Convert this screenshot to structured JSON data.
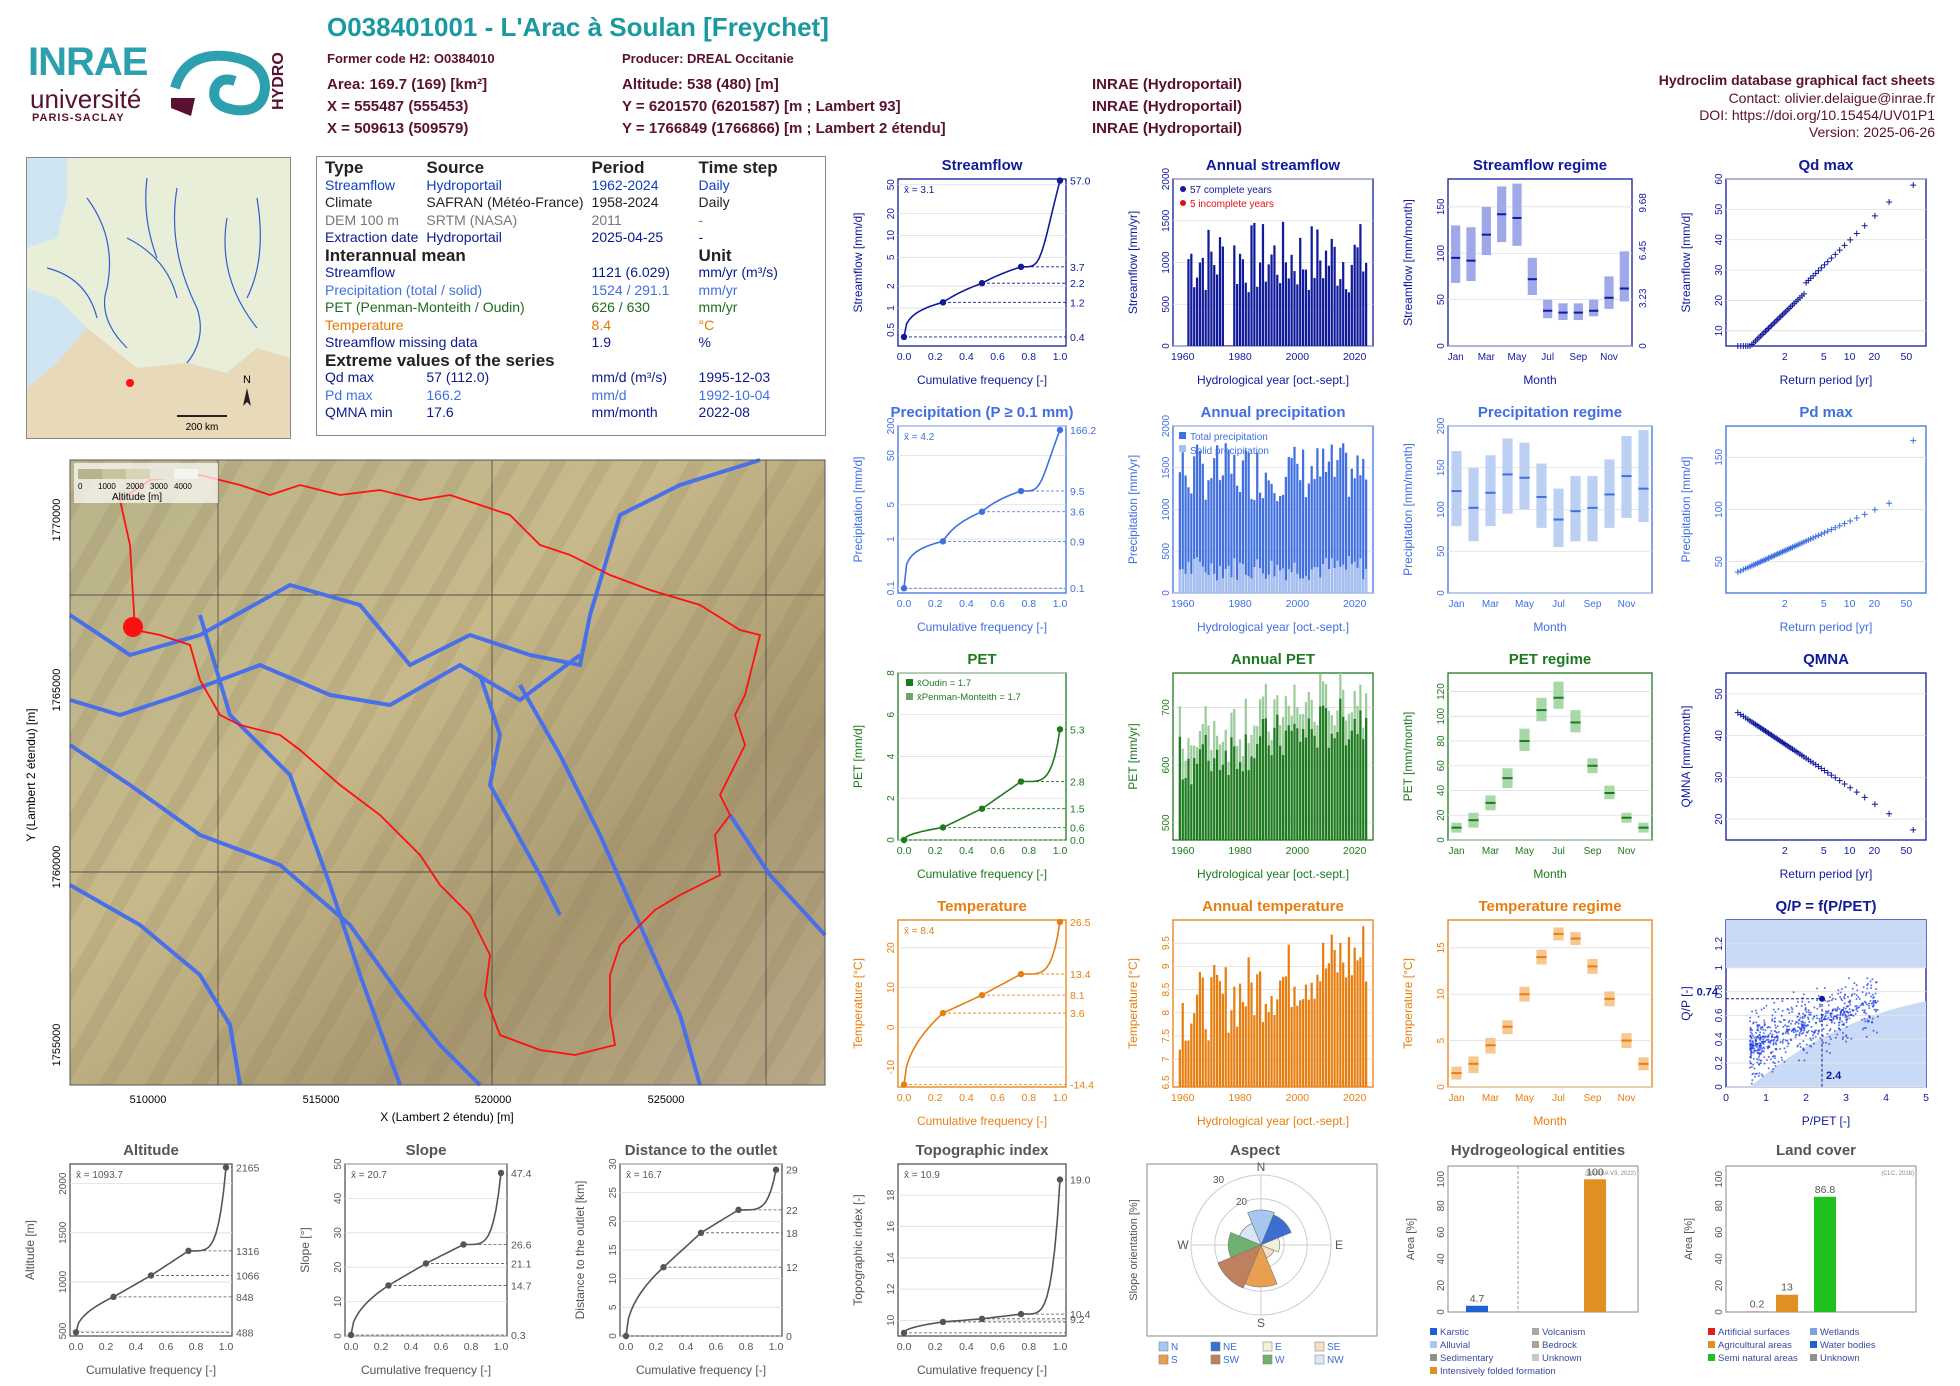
{
  "header": {
    "code_title": "O038401001 - L'Arac à Soulan [Freychet]",
    "former_code": "Former code H2: O0384010",
    "producer": "Producer: DREAL Occitanie",
    "area": "Area: 169.7 (169) [km²]",
    "altitude": "Altitude: 538 (480) [m]",
    "x93": "X = 555487 (555453)",
    "y93": "Y = 6201570 (6201587) [m ; Lambert 93]",
    "x2e": "X = 509613 (509579)",
    "y2e": "Y = 1766849 (1766866) [m ; Lambert 2 étendu]",
    "src1": "INRAE (Hydroportail)",
    "src2": "INRAE (Hydroportail)",
    "src3": "INRAE (Hydroportail)",
    "db_title": "Hydroclim database graphical fact sheets",
    "contact": "Contact: olivier.delaigue@inrae.fr",
    "doi": "DOI: https://doi.org/10.15454/UV01P1",
    "version": "Version: 2025-06-26",
    "logo_inrae": "INRAE",
    "logo_univ": "université",
    "logo_ps": "PARIS-SACLAY",
    "logo_hydro": "HYDRO"
  },
  "info_table": {
    "headers": [
      "Type",
      "Source",
      "Period",
      "Time step"
    ],
    "rows": [
      [
        "Streamflow",
        "Hydroportail",
        "1962-2024",
        "Daily"
      ],
      [
        "Climate",
        "SAFRAN (Météo-France)",
        "1958-2024",
        "Daily"
      ],
      [
        "DEM 100 m",
        "SRTM (NASA)",
        "2011",
        "-"
      ],
      [
        "Extraction date",
        "Hydroportail",
        "2025-04-25",
        "-"
      ]
    ],
    "interannual_title": "Interannual mean",
    "unit_title": "Unit",
    "interannual": [
      [
        "Streamflow",
        "1121 (6.029)",
        "mm/yr (m³/s)"
      ],
      [
        "Precipitation (total / solid)",
        "1524 / 291.1",
        "mm/yr"
      ],
      [
        "PET (Penman-Monteith / Oudin)",
        "626 / 630",
        "mm/yr"
      ],
      [
        "Temperature",
        "8.4",
        "°C"
      ],
      [
        "Streamflow missing data",
        "1.9",
        "%"
      ]
    ],
    "extreme_title": "Extreme values of the series",
    "extremes": [
      [
        "Qd max",
        "57 (112.0)",
        "mm/d (m³/s)",
        "1995-12-03"
      ],
      [
        "Pd max",
        "166.2",
        "mm/d",
        "1992-10-04"
      ],
      [
        "QMNA min",
        "17.6",
        "mm/month",
        "2022-08"
      ]
    ]
  },
  "inset_map": {
    "north": "N",
    "scale": "200 km"
  },
  "dem_map": {
    "legend_title": "Altitude [m]",
    "legend_ticks": [
      "0",
      "1000",
      "2000",
      "3000",
      "4000"
    ],
    "xlabel": "X (Lambert 2 étendu) [m]",
    "ylabel": "Y (Lambert 2 étendu) [m]",
    "xticks": [
      "510000",
      "515000",
      "520000",
      "525000"
    ],
    "yticks": [
      "1770000",
      "1765000",
      "1760000",
      "1755000"
    ]
  },
  "chart_data": [
    {
      "id": "streamflow-cdf",
      "type": "line",
      "title": "Streamflow",
      "ylabel": "Streamflow [mm/d]",
      "xlabel": "Cumulative frequency [-]",
      "mean_label": "x̄ = 3.1",
      "yscale": "log",
      "ylim": [
        0.3,
        60
      ],
      "yticks": [
        "0.5",
        "1",
        "2",
        "5",
        "10",
        "20",
        "50"
      ],
      "right_labels": [
        "57.0",
        "3.7",
        "2.2",
        "1.2",
        "0.4"
      ],
      "x": [
        0,
        0.25,
        0.5,
        0.75,
        1
      ],
      "y": [
        0.4,
        1.2,
        2.2,
        3.7,
        57.0
      ]
    },
    {
      "id": "annual-streamflow",
      "type": "bar",
      "title": "Annual streamflow",
      "ylabel": "Streamflow [mm/yr]",
      "xlabel": "Hydrological year [oct.-sept.]",
      "legend": [
        "57 complete years",
        "5 incomplete years"
      ],
      "ylim": [
        0,
        2000
      ],
      "yticks": [
        "0",
        "500",
        "1000",
        "1500",
        "2000"
      ],
      "xticks": [
        "1960",
        "1980",
        "2000",
        "2020"
      ]
    },
    {
      "id": "streamflow-regime",
      "type": "box",
      "title": "Streamflow regime",
      "ylabel": "Streamflow [mm/month]",
      "right_ylabel": "Streamflow [m³/s]",
      "xlabel": "Month",
      "categories": [
        "Jan",
        "Feb",
        "Mar",
        "Apr",
        "May",
        "Jun",
        "Jul",
        "Aug",
        "Sep",
        "Oct",
        "Nov",
        "Dec"
      ],
      "xtick_labels": [
        "Jan",
        "Mar",
        "May",
        "Jul",
        "Sep",
        "Nov"
      ],
      "median": [
        95,
        92,
        120,
        142,
        138,
        72,
        38,
        36,
        36,
        38,
        52,
        62
      ],
      "low": [
        68,
        70,
        98,
        112,
        108,
        55,
        30,
        28,
        28,
        32,
        40,
        48
      ],
      "high": [
        130,
        128,
        150,
        172,
        175,
        95,
        50,
        46,
        46,
        50,
        75,
        102
      ],
      "ylim": [
        0,
        180
      ],
      "yticks": [
        "0",
        "50",
        "100",
        "150"
      ],
      "right_ticks": [
        "0",
        "3.23",
        "6.45",
        "9.68"
      ]
    },
    {
      "id": "qd-max",
      "type": "scatter",
      "title": "Qd max",
      "ylabel": "Streamflow [mm/d]",
      "xlabel": "Return period [yr]",
      "ylim": [
        5,
        60
      ],
      "yticks": [
        "10",
        "20",
        "30",
        "40",
        "50",
        "60"
      ],
      "xticks": [
        "2",
        "5",
        "10",
        "20",
        "50"
      ]
    },
    {
      "id": "precip-cdf",
      "type": "line",
      "title": "Precipitation (P ≥ 0.1 mm)",
      "ylabel": "Precipitation [mm/d]",
      "xlabel": "Cumulative frequency [-]",
      "mean_label": "x̄ = 4.2",
      "yscale": "log",
      "ylim": [
        0.08,
        200
      ],
      "yticks": [
        "0.1",
        "1",
        "5",
        "50",
        "200"
      ],
      "right_labels": [
        "166.2",
        "9.5",
        "3.6",
        "0.9",
        "0.1"
      ],
      "x": [
        0,
        0.25,
        0.5,
        0.75,
        1
      ],
      "y": [
        0.1,
        0.9,
        3.6,
        9.5,
        166.2
      ]
    },
    {
      "id": "annual-precip",
      "type": "bar",
      "title": "Annual precipitation",
      "ylabel": "Precipitation [mm/yr]",
      "xlabel": "Hydrological year [oct.-sept.]",
      "legend": [
        "Total precipitation",
        "Solid precipitation"
      ],
      "ylim": [
        0,
        2000
      ],
      "yticks": [
        "0",
        "500",
        "1000",
        "1500",
        "2000"
      ],
      "xticks": [
        "1960",
        "1980",
        "2000",
        "2020"
      ]
    },
    {
      "id": "precip-regime",
      "type": "box",
      "title": "Precipitation regime",
      "ylabel": "Precipitation [mm/month]",
      "xlabel": "Month",
      "categories": [
        "Jan",
        "Feb",
        "Mar",
        "Apr",
        "May",
        "Jun",
        "Jul",
        "Aug",
        "Sep",
        "Oct",
        "Nov",
        "Dec"
      ],
      "xtick_labels": [
        "Jan",
        "Mar",
        "May",
        "Jul",
        "Sep",
        "Nov"
      ],
      "median": [
        122,
        102,
        120,
        142,
        138,
        115,
        88,
        98,
        102,
        118,
        140,
        125
      ],
      "low": [
        80,
        62,
        80,
        95,
        100,
        78,
        55,
        62,
        62,
        78,
        90,
        85
      ],
      "high": [
        170,
        150,
        165,
        185,
        180,
        155,
        125,
        140,
        140,
        160,
        188,
        195
      ],
      "ylim": [
        0,
        200
      ],
      "yticks": [
        "0",
        "50",
        "100",
        "150",
        "200"
      ]
    },
    {
      "id": "pd-max",
      "type": "scatter",
      "title": "Pd max",
      "ylabel": "Precipitation [mm/d]",
      "xlabel": "Return period [yr]",
      "ylim": [
        20,
        180
      ],
      "yticks": [
        "50",
        "100",
        "150"
      ],
      "xticks": [
        "2",
        "5",
        "10",
        "20",
        "50"
      ]
    },
    {
      "id": "pet-cdf",
      "type": "line",
      "title": "PET",
      "ylabel": "PET [mm/d]",
      "xlabel": "Cumulative frequency [-]",
      "legend": [
        "x̄Oudin = 1.7",
        "x̄Penman-Monteith = 1.7"
      ],
      "ylim": [
        0,
        8
      ],
      "yticks": [
        "0",
        "2",
        "4",
        "6",
        "8"
      ],
      "right_labels": [
        "5.3",
        "2.8",
        "1.5",
        "0.6",
        "0.0"
      ],
      "x": [
        0,
        0.25,
        0.5,
        0.75,
        1
      ],
      "y": [
        0.0,
        0.6,
        1.5,
        2.8,
        5.3
      ]
    },
    {
      "id": "annual-pet",
      "type": "bar",
      "title": "Annual PET",
      "ylabel": "PET [mm/yr]",
      "xlabel": "Hydrological year [oct.-sept.]",
      "ylim": [
        470,
        760
      ],
      "yticks": [
        "500",
        "600",
        "700"
      ],
      "xticks": [
        "1960",
        "1980",
        "2000",
        "2020"
      ]
    },
    {
      "id": "pet-regime",
      "type": "box",
      "title": "PET regime",
      "ylabel": "PET [mm/month]",
      "xlabel": "Month",
      "categories": [
        "Jan",
        "Feb",
        "Mar",
        "Apr",
        "May",
        "Jun",
        "Jul",
        "Aug",
        "Sep",
        "Oct",
        "Nov",
        "Dec"
      ],
      "xtick_labels": [
        "Jan",
        "Mar",
        "May",
        "Jul",
        "Sep",
        "Nov"
      ],
      "median": [
        10,
        16,
        30,
        50,
        80,
        105,
        115,
        95,
        60,
        38,
        18,
        10
      ],
      "low": [
        6,
        10,
        24,
        42,
        72,
        96,
        106,
        87,
        54,
        33,
        14,
        6
      ],
      "high": [
        14,
        22,
        36,
        58,
        90,
        115,
        128,
        105,
        66,
        44,
        22,
        14
      ],
      "ylim": [
        0,
        135
      ],
      "yticks": [
        "0",
        "20",
        "40",
        "60",
        "80",
        "100",
        "120"
      ]
    },
    {
      "id": "qmna",
      "type": "scatter",
      "title": "QMNA",
      "ylabel": "QMNA [mm/month]",
      "xlabel": "Return period [yr]",
      "ylim": [
        15,
        55
      ],
      "yticks": [
        "20",
        "30",
        "40",
        "50"
      ],
      "xticks": [
        "2",
        "5",
        "10",
        "20",
        "50"
      ]
    },
    {
      "id": "temp-cdf",
      "type": "line",
      "title": "Temperature",
      "ylabel": "Temperature [°C]",
      "xlabel": "Cumulative frequency [-]",
      "mean_label": "x̄ = 8.4",
      "ylim": [
        -15,
        27
      ],
      "yticks": [
        "-10",
        "0",
        "10",
        "20"
      ],
      "right_labels": [
        "26.5",
        "13.4",
        "8.1",
        "3.6",
        "-14.4"
      ],
      "x": [
        0,
        0.25,
        0.5,
        0.75,
        1
      ],
      "y": [
        -14.4,
        3.6,
        8.1,
        13.4,
        26.5
      ]
    },
    {
      "id": "annual-temp",
      "type": "bar",
      "title": "Annual temperature",
      "ylabel": "Temperature [°C]",
      "xlabel": "Hydrological year [oct.-sept.]",
      "ylim": [
        6.4,
        10.0
      ],
      "yticks": [
        "6.5",
        "7",
        "7.5",
        "8",
        "8.5",
        "9",
        "9.5"
      ],
      "xticks": [
        "1960",
        "1980",
        "2000",
        "2020"
      ]
    },
    {
      "id": "temp-regime",
      "type": "box",
      "title": "Temperature regime",
      "ylabel": "Temperature [°C]",
      "xlabel": "Month",
      "categories": [
        "Jan",
        "Feb",
        "Mar",
        "Apr",
        "May",
        "Jun",
        "Jul",
        "Aug",
        "Sep",
        "Oct",
        "Nov",
        "Dec"
      ],
      "xtick_labels": [
        "Jan",
        "Mar",
        "May",
        "Jul",
        "Sep",
        "Nov"
      ],
      "median": [
        1.5,
        2.5,
        4.5,
        6.5,
        10,
        14,
        16.5,
        16,
        13,
        9.5,
        5,
        2.5
      ],
      "low": [
        0.8,
        1.5,
        3.6,
        5.7,
        9.2,
        13.2,
        15.8,
        15.3,
        12.2,
        8.7,
        4.2,
        1.8
      ],
      "high": [
        2.2,
        3.3,
        5.3,
        7.2,
        10.8,
        14.8,
        17.2,
        16.7,
        13.8,
        10.3,
        5.8,
        3.2
      ],
      "ylim": [
        0,
        18
      ],
      "yticks": [
        "0",
        "5",
        "10",
        "15"
      ]
    },
    {
      "id": "qp-ppet",
      "type": "scatter",
      "title": "Q/P = f(P/PET)",
      "ylabel": "Q/P [-]",
      "xlabel": "P/PET [-]",
      "annotations": [
        "0.74",
        "2.4"
      ],
      "xlim": [
        0,
        5
      ],
      "ylim": [
        0,
        1.4
      ],
      "xticks": [
        "0",
        "1",
        "2",
        "3",
        "4",
        "5"
      ],
      "yticks": [
        "0",
        "0.2",
        "0.4",
        "0.6",
        "0.8",
        "1",
        "1.2"
      ]
    },
    {
      "id": "altitude-cdf",
      "type": "line",
      "title": "Altitude",
      "ylabel": "Altitude [m]",
      "xlabel": "Cumulative frequency [-]",
      "mean_label": "x̄ = 1093.7",
      "ylim": [
        450,
        2200
      ],
      "yticks": [
        "500",
        "1000",
        "1500",
        "2000"
      ],
      "right_labels": [
        "2165",
        "1316",
        "1066",
        "848",
        "488"
      ],
      "x": [
        0,
        0.25,
        0.5,
        0.75,
        1
      ],
      "y": [
        488,
        848,
        1066,
        1316,
        2165
      ]
    },
    {
      "id": "slope-cdf",
      "type": "line",
      "title": "Slope",
      "ylabel": "Slope [°]",
      "xlabel": "Cumulative frequency [-]",
      "mean_label": "x̄ = 20.7",
      "ylim": [
        0,
        50
      ],
      "yticks": [
        "0",
        "10",
        "20",
        "30",
        "40",
        "50"
      ],
      "right_labels": [
        "47.4",
        "26.6",
        "21.1",
        "14.7",
        "0.3"
      ],
      "x": [
        0,
        0.25,
        0.5,
        0.75,
        1
      ],
      "y": [
        0.3,
        14.7,
        21.1,
        26.6,
        47.4
      ]
    },
    {
      "id": "distance-cdf",
      "type": "line",
      "title": "Distance to the outlet",
      "ylabel": "Distance to the outlet [km]",
      "xlabel": "Cumulative frequency [-]",
      "mean_label": "x̄ = 16.7",
      "ylim": [
        0,
        30
      ],
      "yticks": [
        "0",
        "5",
        "10",
        "15",
        "20",
        "25",
        "30"
      ],
      "right_labels": [
        "29",
        "22",
        "18",
        "12",
        "0"
      ],
      "x": [
        0,
        0.25,
        0.5,
        0.75,
        1
      ],
      "y": [
        0,
        12,
        18,
        22,
        29
      ]
    },
    {
      "id": "topo-cdf",
      "type": "line",
      "title": "Topographic index",
      "ylabel": "Topographic index [-]",
      "xlabel": "Cumulative frequency [-]",
      "mean_label": "x̄ = 10.9",
      "ylim": [
        9,
        20
      ],
      "yticks": [
        "10",
        "12",
        "14",
        "16",
        "18"
      ],
      "right_labels": [
        "19.0",
        "10.4",
        "9.2"
      ],
      "x": [
        0,
        0.25,
        0.5,
        0.75,
        1
      ],
      "y": [
        9.2,
        9.9,
        10.1,
        10.4,
        19.0
      ]
    },
    {
      "id": "aspect",
      "type": "pie",
      "title": "Aspect",
      "ylabel": "Slope orientation [%]",
      "directions": [
        "N",
        "NE",
        "E",
        "SE",
        "S",
        "SW",
        "W",
        "NW"
      ],
      "values": [
        15,
        14,
        8,
        6,
        18,
        20,
        14,
        10
      ],
      "ring_labels": [
        "20",
        "30"
      ],
      "legend": [
        "N",
        "NE",
        "E",
        "SE",
        "S",
        "SW",
        "W",
        "NW"
      ]
    },
    {
      "id": "hydrogeo",
      "type": "bar",
      "title": "Hydrogeological entities",
      "ylabel": "Area [%]",
      "note": "(BDLISA V3, 2022)",
      "categories": [
        "Karstic",
        "Intensively folded formation"
      ],
      "values": [
        4.7,
        100
      ],
      "ylim": [
        0,
        110
      ],
      "yticks": [
        "0",
        "20",
        "40",
        "60",
        "80",
        "100"
      ],
      "legend": [
        "Karstic",
        "Volcanism",
        "Alluvial",
        "Bedrock",
        "Sedimentary",
        "Unknown",
        "Intensively folded formation"
      ]
    },
    {
      "id": "landcover",
      "type": "bar",
      "title": "Land cover",
      "ylabel": "Area [%]",
      "note": "(CLC, 2018)",
      "categories": [
        "Artificial surfaces",
        "Agricultural areas",
        "Semi natural areas"
      ],
      "values": [
        0.2,
        13,
        86.8
      ],
      "ylim": [
        0,
        110
      ],
      "yticks": [
        "0",
        "20",
        "40",
        "60",
        "80",
        "100"
      ],
      "legend": [
        "Artificial surfaces",
        "Wetlands",
        "Agricultural areas",
        "Water bodies",
        "Semi natural areas",
        "Unknown"
      ]
    }
  ]
}
